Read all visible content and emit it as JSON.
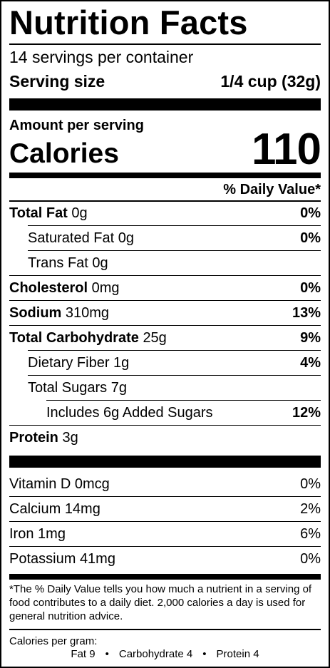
{
  "title": "Nutrition Facts",
  "servings_per_container": "14 servings per container",
  "serving_size": {
    "label": "Serving size",
    "value": "1/4 cup (32g)"
  },
  "amount_per_serving": "Amount per serving",
  "calories": {
    "label": "Calories",
    "value": "110"
  },
  "daily_value_header": "% Daily Value*",
  "nutrients": [
    {
      "name": "Total Fat",
      "amount": "0g",
      "dv": "0%",
      "bold": true,
      "indent": 0
    },
    {
      "name": "Saturated Fat",
      "amount": "0g",
      "dv": "0%",
      "bold": false,
      "indent": 1
    },
    {
      "name": "Trans Fat",
      "amount": "0g",
      "dv": "",
      "bold": false,
      "indent": 1
    },
    {
      "name": "Cholesterol",
      "amount": "0mg",
      "dv": "0%",
      "bold": true,
      "indent": 0
    },
    {
      "name": "Sodium",
      "amount": "310mg",
      "dv": "13%",
      "bold": true,
      "indent": 0
    },
    {
      "name": "Total Carbohydrate",
      "amount": "25g",
      "dv": "9%",
      "bold": true,
      "indent": 0
    },
    {
      "name": "Dietary Fiber",
      "amount": "1g",
      "dv": "4%",
      "bold": false,
      "indent": 1
    },
    {
      "name": "Total Sugars",
      "amount": "7g",
      "dv": "",
      "bold": false,
      "indent": 1
    },
    {
      "name": "Includes 6g Added Sugars",
      "amount": "",
      "dv": "12%",
      "bold": false,
      "indent": 2
    },
    {
      "name": "Protein",
      "amount": "3g",
      "dv": "",
      "bold": true,
      "indent": 0
    }
  ],
  "vitamins": [
    {
      "name": "Vitamin D",
      "amount": "0mcg",
      "dv": "0%"
    },
    {
      "name": "Calcium",
      "amount": "14mg",
      "dv": "2%"
    },
    {
      "name": "Iron",
      "amount": "1mg",
      "dv": "6%"
    },
    {
      "name": "Potassium",
      "amount": "41mg",
      "dv": "0%"
    }
  ],
  "footnote": "*The % Daily Value tells you how much a nutrient in a serving of food contributes to a daily diet. 2,000 calories a day is used for general nutrition advice.",
  "calories_per_gram": {
    "label": "Calories per gram:",
    "fat": "Fat 9",
    "carbohydrate": "Carbohydrate 4",
    "protein": "Protein 4",
    "separator": "•"
  }
}
